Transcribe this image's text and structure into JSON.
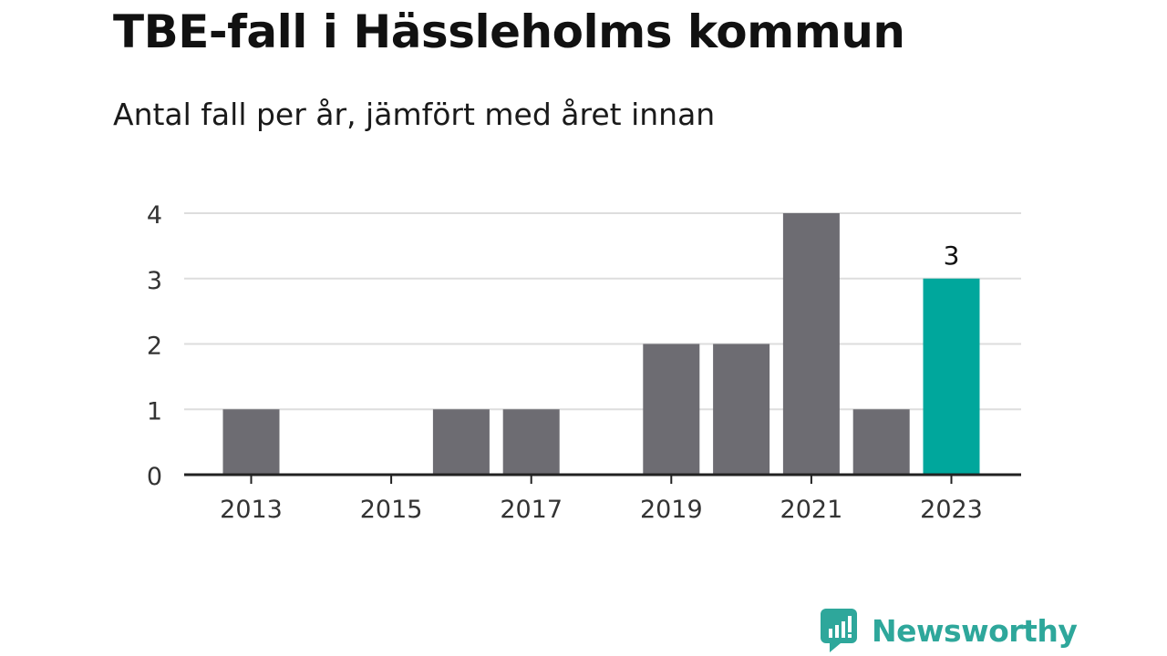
{
  "title": "TBE-fall i Hässleholms kommun",
  "subtitle": "Antal fall per år, jämfört med året innan",
  "brand": {
    "name": "Newsworthy",
    "icon": "newsworthy-logo-icon"
  },
  "colors": {
    "bar": "#6d6c72",
    "highlight": "#00a79c",
    "grid": "#dddddd",
    "axis": "#222222",
    "brand": "#2ea79b"
  },
  "chart_data": {
    "type": "bar",
    "title": "TBE-fall i Hässleholms kommun",
    "subtitle": "Antal fall per år, jämfört med året innan",
    "categories": [
      "2013",
      "2014",
      "2015",
      "2016",
      "2017",
      "2018",
      "2019",
      "2020",
      "2021",
      "2022",
      "2023"
    ],
    "values": [
      1,
      0,
      0,
      1,
      1,
      0,
      2,
      2,
      4,
      1,
      3
    ],
    "highlight_index": 10,
    "data_labels": [
      {
        "index": 10,
        "text": "3"
      }
    ],
    "x_tick_labels": [
      "2013",
      "2015",
      "2017",
      "2019",
      "2021",
      "2023"
    ],
    "y_ticks": [
      0,
      1,
      2,
      3,
      4
    ],
    "ylim": [
      0,
      4
    ],
    "grid": true,
    "legend": "none",
    "xlabel": "",
    "ylabel": ""
  }
}
